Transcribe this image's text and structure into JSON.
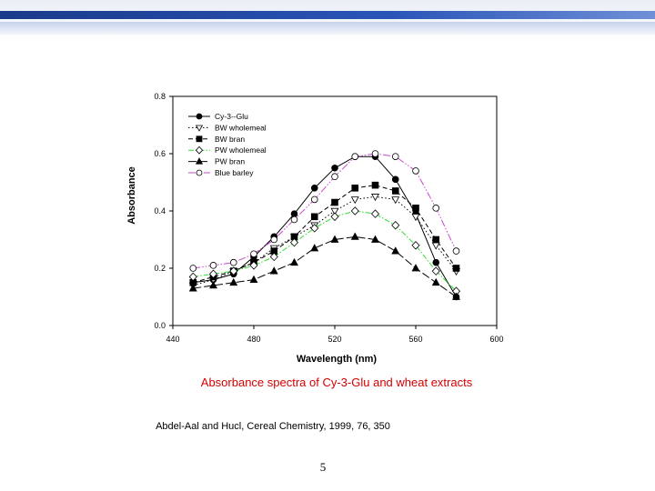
{
  "chart_data": {
    "type": "line",
    "xlabel": "Wavelength (nm)",
    "ylabel": "Absorbance",
    "xlim": [
      440,
      600
    ],
    "ylim": [
      0.0,
      0.8
    ],
    "xticks": [
      440,
      480,
      520,
      560,
      600
    ],
    "yticks": [
      0.0,
      0.2,
      0.4,
      0.6,
      0.8
    ],
    "xtick_labels": [
      "440",
      "480",
      "520",
      "560",
      "600"
    ],
    "ytick_labels": [
      "0.0",
      "0.2",
      "0.4",
      "0.6",
      "0.8"
    ],
    "grid": false,
    "legend_position": "top-left",
    "x": [
      450,
      460,
      470,
      480,
      490,
      500,
      510,
      520,
      530,
      540,
      550,
      560,
      570,
      580
    ],
    "series": [
      {
        "name": "Cy-3--Glu",
        "color": "#000000",
        "dash": "solid",
        "marker": "circle-filled",
        "values": [
          0.15,
          0.16,
          0.18,
          0.24,
          0.31,
          0.39,
          0.48,
          0.55,
          0.59,
          0.59,
          0.51,
          0.39,
          0.22,
          0.1
        ]
      },
      {
        "name": "BW wholemeal",
        "color": "#000000",
        "dash": "dotted",
        "marker": "triangle-down-open",
        "values": [
          0.14,
          0.16,
          0.19,
          0.22,
          0.27,
          0.31,
          0.35,
          0.4,
          0.44,
          0.45,
          0.44,
          0.38,
          0.28,
          0.19
        ]
      },
      {
        "name": "BW bran",
        "color": "#000000",
        "dash": "dashed",
        "marker": "square-filled",
        "values": [
          0.15,
          0.17,
          0.19,
          0.22,
          0.26,
          0.31,
          0.38,
          0.43,
          0.48,
          0.49,
          0.47,
          0.41,
          0.3,
          0.2
        ]
      },
      {
        "name": "PW wholemeal",
        "color": "#33dd33",
        "dash": "dashdot",
        "marker": "diamond-open",
        "values": [
          0.17,
          0.18,
          0.19,
          0.21,
          0.24,
          0.29,
          0.34,
          0.38,
          0.4,
          0.39,
          0.35,
          0.28,
          0.19,
          0.12
        ]
      },
      {
        "name": "PW bran",
        "color": "#000000",
        "dash": "longdash",
        "marker": "triangle-up-filled",
        "values": [
          0.13,
          0.14,
          0.15,
          0.16,
          0.19,
          0.22,
          0.27,
          0.3,
          0.31,
          0.3,
          0.26,
          0.2,
          0.15,
          0.1
        ]
      },
      {
        "name": "Blue barley",
        "color": "#cc44cc",
        "dash": "dashdotdot",
        "marker": "circle-open",
        "values": [
          0.2,
          0.21,
          0.22,
          0.25,
          0.3,
          0.37,
          0.44,
          0.52,
          0.59,
          0.6,
          0.59,
          0.54,
          0.41,
          0.26
        ]
      }
    ]
  },
  "caption": "Absorbance spectra of Cy-3-Glu and wheat extracts",
  "citation": "Abdel-Aal and Hucl, Cereal Chemistry, 1999, 76, 350",
  "page_number": "5"
}
